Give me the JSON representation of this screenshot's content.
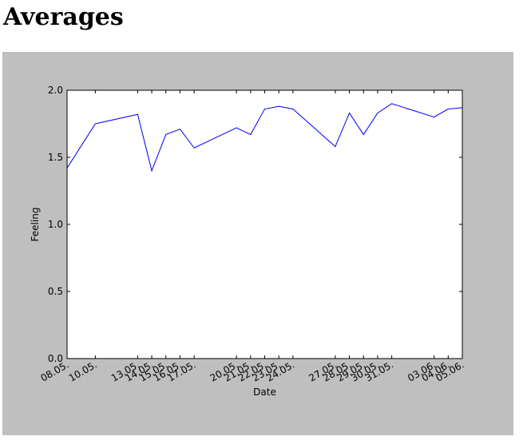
{
  "page": {
    "title": "Averages"
  },
  "chart_data": {
    "type": "line",
    "title": "",
    "xlabel": "Date",
    "ylabel": "Feeling",
    "ylim": [
      0.0,
      2.0
    ],
    "yticks": [
      "0.0",
      "0.5",
      "1.0",
      "1.5",
      "2.0"
    ],
    "xlim": [
      "08.05.",
      "05.06."
    ],
    "xticks": [
      "08.05.",
      "10.05.",
      "13.05.",
      "14.05.",
      "15.05.",
      "16.05.",
      "17.05.",
      "20.05.",
      "21.05.",
      "22.05.",
      "23.05.",
      "24.05.",
      "27.05.",
      "28.05.",
      "29.05.",
      "30.05.",
      "31.05.",
      "03.06.",
      "04.06.",
      "05.06."
    ],
    "grid": false,
    "series": [
      {
        "color": "#0000ff",
        "x": [
          "08.05.",
          "10.05.",
          "13.05.",
          "14.05.",
          "15.05.",
          "16.05.",
          "17.05.",
          "20.05.",
          "21.05.",
          "22.05.",
          "23.05.",
          "24.05.",
          "27.05.",
          "28.05.",
          "29.05.",
          "30.05.",
          "31.05.",
          "03.06.",
          "04.06.",
          "05.06."
        ],
        "values": [
          1.42,
          1.75,
          1.82,
          1.4,
          1.67,
          1.71,
          1.57,
          1.72,
          1.67,
          1.86,
          1.88,
          1.86,
          1.58,
          1.83,
          1.67,
          1.83,
          1.9,
          1.8,
          1.86,
          1.87
        ]
      }
    ]
  }
}
